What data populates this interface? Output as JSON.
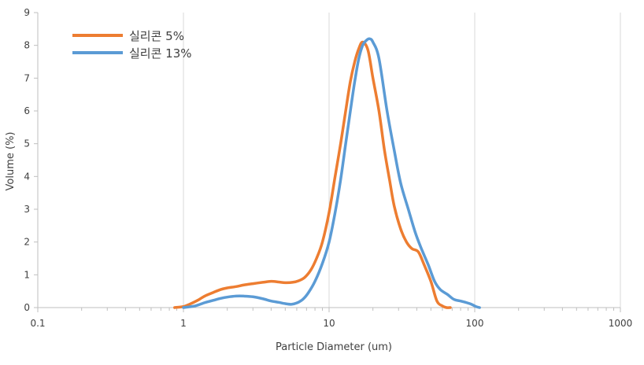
{
  "chart_data": {
    "type": "line",
    "xscale": "log",
    "xlabel": "Particle  Diameter (um)",
    "ylabel": "Volume (%)",
    "xlim": [
      0.1,
      1000
    ],
    "ylim": [
      0,
      9
    ],
    "x_ticks": [
      "0.1",
      "1",
      "10",
      "100",
      "1000"
    ],
    "y_ticks": [
      "0",
      "1",
      "2",
      "3",
      "4",
      "5",
      "6",
      "7",
      "8",
      "9"
    ],
    "grid": "vertical",
    "legend_position": "top-left",
    "series": [
      {
        "name": "실리콘 5%",
        "color": "#ED7D31",
        "x": [
          0.87,
          1.0,
          1.1,
          1.25,
          1.4,
          1.6,
          1.8,
          2.0,
          2.3,
          2.6,
          3.0,
          3.5,
          4.0,
          4.5,
          5.0,
          5.6,
          6.2,
          6.8,
          7.5,
          8.2,
          9.0,
          10.0,
          11.0,
          12.0,
          13.0,
          14.0,
          15.0,
          16.0,
          17.0,
          18.5,
          20.0,
          22.0,
          24.0,
          26.0,
          28.0,
          31.0,
          34.0,
          37.0,
          41.0,
          45.0,
          50.0,
          55.0,
          60.0,
          64.0,
          68.0
        ],
        "values": [
          0.0,
          0.03,
          0.1,
          0.22,
          0.35,
          0.46,
          0.55,
          0.6,
          0.64,
          0.69,
          0.73,
          0.77,
          0.8,
          0.78,
          0.76,
          0.77,
          0.82,
          0.92,
          1.15,
          1.5,
          2.0,
          2.9,
          4.0,
          5.0,
          6.0,
          6.9,
          7.5,
          7.9,
          8.1,
          7.85,
          7.0,
          6.0,
          4.8,
          3.9,
          3.1,
          2.4,
          2.0,
          1.8,
          1.7,
          1.3,
          0.8,
          0.2,
          0.05,
          0.0,
          0.0
        ]
      },
      {
        "name": "실리콘 13%",
        "color": "#5B9BD5",
        "x": [
          1.0,
          1.2,
          1.4,
          1.6,
          1.8,
          2.0,
          2.3,
          2.6,
          3.0,
          3.5,
          4.0,
          4.5,
          5.0,
          5.5,
          6.0,
          6.6,
          7.2,
          8.0,
          9.0,
          10.0,
          11.0,
          12.0,
          13.0,
          14.0,
          15.0,
          16.0,
          17.0,
          18.0,
          19.0,
          20.0,
          22.0,
          25.0,
          28.0,
          31.0,
          35.0,
          39.0,
          43.0,
          48.0,
          53.0,
          58.0,
          65.0,
          72.0,
          80.0,
          88.0,
          95.0,
          102.0,
          108.0
        ],
        "values": [
          0.0,
          0.05,
          0.15,
          0.22,
          0.28,
          0.32,
          0.35,
          0.35,
          0.33,
          0.27,
          0.2,
          0.16,
          0.12,
          0.1,
          0.14,
          0.25,
          0.45,
          0.8,
          1.35,
          2.0,
          2.9,
          3.9,
          5.0,
          6.0,
          6.9,
          7.6,
          8.0,
          8.15,
          8.2,
          8.1,
          7.6,
          6.0,
          4.8,
          3.8,
          3.0,
          2.3,
          1.8,
          1.3,
          0.8,
          0.55,
          0.4,
          0.25,
          0.2,
          0.15,
          0.1,
          0.03,
          0.0
        ]
      }
    ]
  }
}
